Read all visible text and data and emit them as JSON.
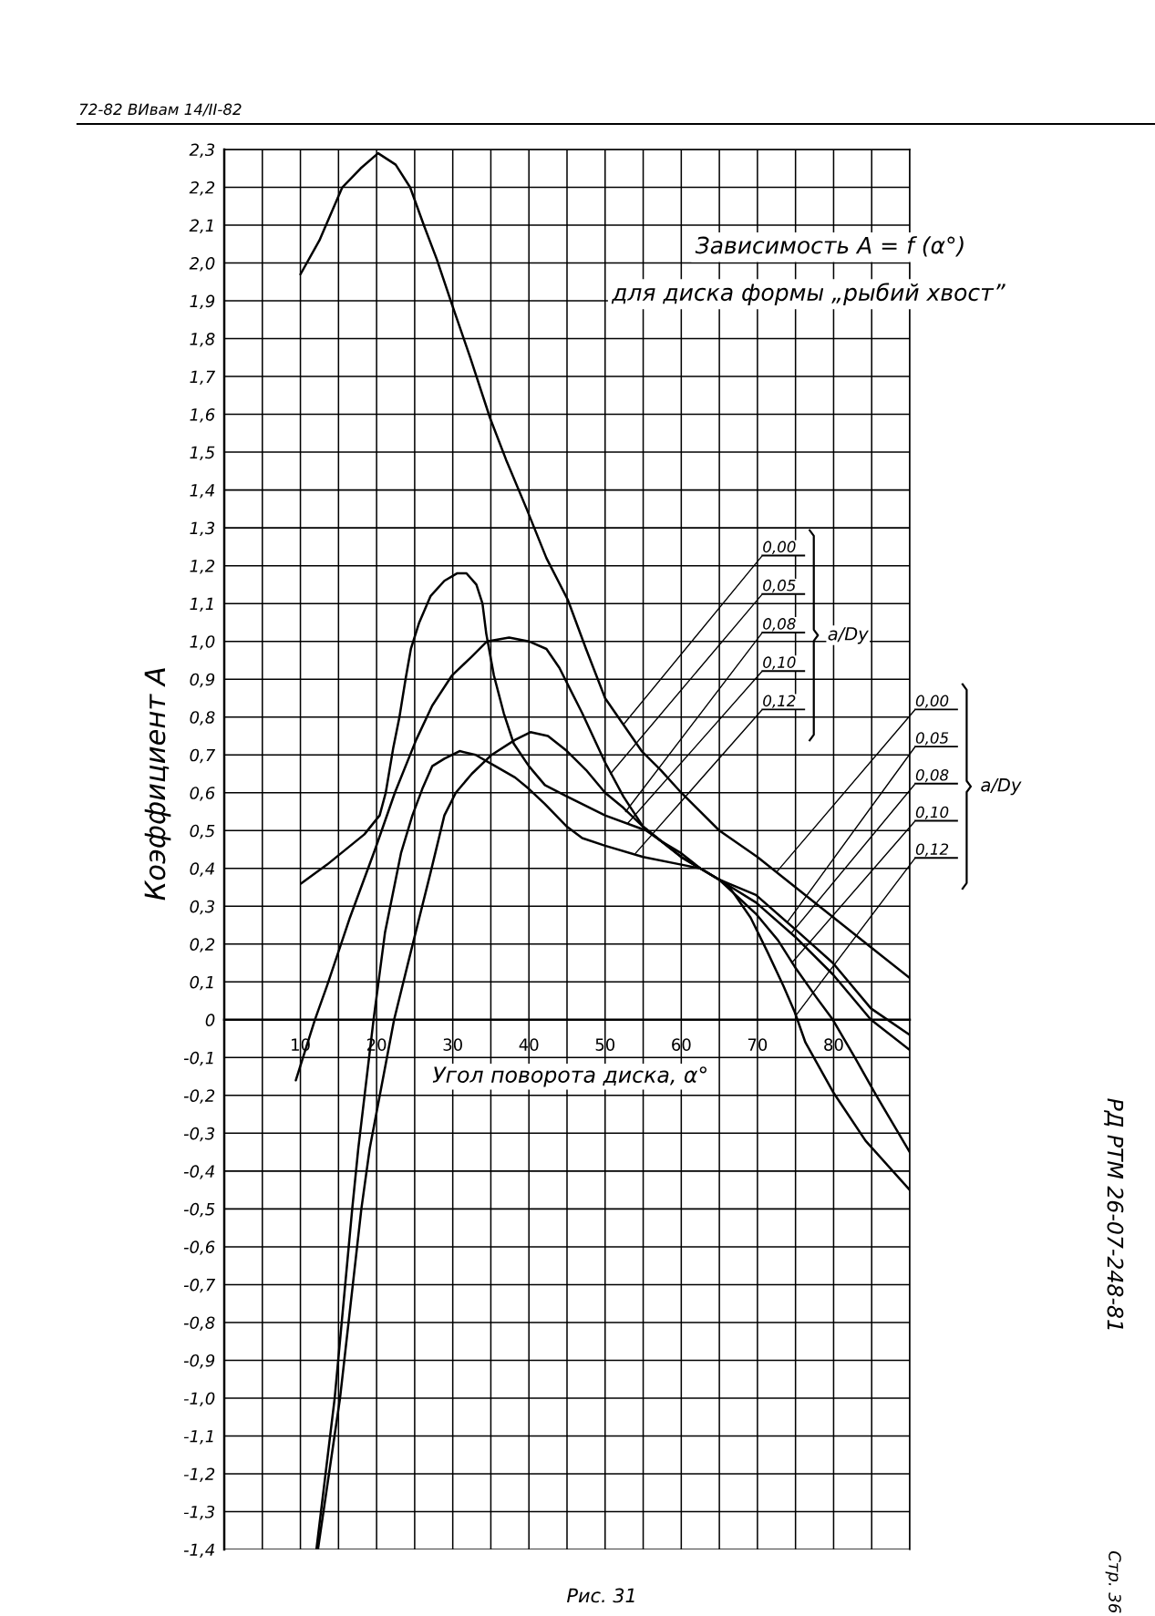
{
  "chart_data": {
    "type": "line",
    "title": "Зависимость A = f (α°)",
    "subtitle": "для диска формы „рыбий хвост”",
    "xlabel": "Угол поворота диска, α°",
    "ylabel": "Коэффициент A",
    "xlim": [
      0,
      90
    ],
    "ylim": [
      -1.4,
      2.3
    ],
    "xticks": [
      {
        "value": 0,
        "label": null
      },
      {
        "value": 5,
        "label": null
      },
      10,
      {
        "value": 15,
        "label": null
      },
      20,
      {
        "value": 25,
        "label": null
      },
      30,
      {
        "value": 35,
        "label": null
      },
      40,
      {
        "value": 45,
        "label": null
      },
      50,
      {
        "value": 55,
        "label": null
      },
      60,
      {
        "value": 65,
        "label": null
      },
      70,
      {
        "value": 75,
        "label": null
      },
      80,
      {
        "value": 85,
        "label": null
      },
      {
        "value": 90,
        "label": null
      }
    ],
    "yticks": [
      {
        "value": -1.4,
        "label": "-1,4"
      },
      {
        "value": -1.3,
        "label": "-1,3"
      },
      {
        "value": -1.2,
        "label": "-1,2"
      },
      {
        "value": -1.1,
        "label": "-1,1"
      },
      {
        "value": -1.0,
        "label": "-1,0"
      },
      {
        "value": -0.9,
        "label": "-0,9"
      },
      {
        "value": -0.8,
        "label": "-0,8"
      },
      {
        "value": -0.7,
        "label": "-0,7"
      },
      {
        "value": -0.6,
        "label": "-0,6"
      },
      {
        "value": -0.5,
        "label": "-0,5"
      },
      {
        "value": -0.4,
        "label": "-0,4"
      },
      {
        "value": -0.3,
        "label": "-0,3"
      },
      {
        "value": -0.2,
        "label": "-0,2"
      },
      {
        "value": -0.1,
        "label": "-0,1"
      },
      0,
      {
        "value": 0.1,
        "label": "0,1"
      },
      {
        "value": 0.2,
        "label": "0,2"
      },
      {
        "value": 0.3,
        "label": "0,3"
      },
      {
        "value": 0.4,
        "label": "0,4"
      },
      {
        "value": 0.5,
        "label": "0,5"
      },
      {
        "value": 0.6,
        "label": "0,6"
      },
      {
        "value": 0.7,
        "label": "0,7"
      },
      {
        "value": 0.8,
        "label": "0,8"
      },
      {
        "value": 0.9,
        "label": "0,9"
      },
      {
        "value": 1.0,
        "label": "1,0"
      },
      {
        "value": 1.1,
        "label": "1,1"
      },
      {
        "value": 1.2,
        "label": "1,2"
      },
      {
        "value": 1.3,
        "label": "1,3"
      },
      {
        "value": 1.4,
        "label": "1,4"
      },
      {
        "value": 1.5,
        "label": "1,5"
      },
      {
        "value": 1.6,
        "label": "1,6"
      },
      {
        "value": 1.7,
        "label": "1,7"
      },
      {
        "value": 1.8,
        "label": "1,8"
      },
      {
        "value": 1.9,
        "label": "1,9"
      },
      {
        "value": 2.0,
        "label": "2,0"
      },
      {
        "value": 2.1,
        "label": "2,1"
      },
      {
        "value": 2.2,
        "label": "2,2"
      },
      {
        "value": 2.3,
        "label": "2,3"
      }
    ],
    "grid": true,
    "line_style": "solid",
    "series": [
      {
        "color": "#000000",
        "x": [
          10.0,
          12.5,
          15.5,
          17.9,
          20.2,
          22.5,
          24.4,
          26.2,
          27.9,
          29.9,
          32.3,
          34.9,
          37.0,
          39.7,
          42.3,
          45.1,
          47.5,
          50.0,
          52.4,
          54.8,
          57.3,
          60.0,
          65.0,
          70.0,
          75.0,
          80.0,
          85.0,
          90.0
        ],
        "values": [
          1.97,
          2.06,
          2.2,
          2.25,
          2.29,
          2.26,
          2.2,
          2.1,
          2.01,
          1.89,
          1.75,
          1.59,
          1.48,
          1.35,
          1.22,
          1.11,
          0.98,
          0.85,
          0.78,
          0.71,
          0.66,
          0.6,
          0.5,
          0.43,
          0.35,
          0.27,
          0.19,
          0.11
        ]
      },
      {
        "color": "#000000",
        "x": [
          9.4,
          11.9,
          13.5,
          16.5,
          19.8,
          22.4,
          25.2,
          27.3,
          29.9,
          32.5,
          34.5,
          37.4,
          40.0,
          42.3,
          44.0,
          47.0,
          50.0,
          52.4,
          55.0,
          57.5,
          60.0,
          62.5,
          65.0,
          69.8,
          74.9,
          79.9,
          84.9,
          90.0
        ],
        "values": [
          -0.16,
          0.0,
          0.09,
          0.27,
          0.45,
          0.6,
          0.74,
          0.83,
          0.91,
          0.96,
          1.0,
          1.01,
          1.0,
          0.98,
          0.93,
          0.81,
          0.68,
          0.59,
          0.51,
          0.47,
          0.43,
          0.4,
          0.37,
          0.33,
          0.24,
          0.15,
          0.03,
          -0.04
        ]
      },
      {
        "color": "#000000",
        "x": [
          12.3,
          15.2,
          18.0,
          19.1,
          22.3,
          24.5,
          27.1,
          28.9,
          30.4,
          32.5,
          35.1,
          38.2,
          40.2,
          42.5,
          45.0,
          47.5,
          50.0,
          52.4,
          55.0,
          57.5,
          60.0,
          62.5,
          65.0,
          69.8,
          74.9,
          79.9,
          84.9,
          90.0
        ],
        "values": [
          -1.4,
          -1.0,
          -0.5,
          -0.34,
          0.0,
          0.18,
          0.39,
          0.54,
          0.6,
          0.65,
          0.7,
          0.74,
          0.76,
          0.75,
          0.71,
          0.66,
          0.6,
          0.56,
          0.51,
          0.47,
          0.43,
          0.4,
          0.37,
          0.31,
          0.22,
          0.12,
          0.0,
          -0.08
        ]
      },
      {
        "color": "#000000",
        "x": [
          10.1,
          13.5,
          18.4,
          20.4,
          21.2,
          22.2,
          23.0,
          23.8,
          24.5,
          25.6,
          27.1,
          28.9,
          30.6,
          31.8,
          33.1,
          33.9,
          34.4,
          35.4,
          36.7,
          38.0,
          40.0,
          42.1,
          45.0,
          50.0,
          55.4,
          57.5,
          60.0,
          62.5,
          65.0,
          69.8,
          72.7,
          74.9,
          77.7,
          79.9,
          82.8,
          85.6,
          90.0
        ],
        "values": [
          0.36,
          0.41,
          0.49,
          0.54,
          0.6,
          0.72,
          0.8,
          0.9,
          0.98,
          1.05,
          1.12,
          1.16,
          1.18,
          1.18,
          1.15,
          1.1,
          1.02,
          0.91,
          0.81,
          0.73,
          0.67,
          0.62,
          0.59,
          0.54,
          0.5,
          0.47,
          0.44,
          0.4,
          0.37,
          0.28,
          0.21,
          0.14,
          0.06,
          0.0,
          -0.1,
          -0.2,
          -0.35
        ]
      },
      {
        "color": "#000000",
        "x": [
          12.1,
          14.5,
          16.8,
          17.6,
          19.6,
          21.1,
          23.2,
          24.7,
          26.0,
          27.3,
          28.9,
          30.9,
          33.0,
          35.6,
          38.2,
          40.0,
          42.1,
          45.0,
          47.0,
          50.0,
          55.0,
          60.0,
          62.5,
          65.0,
          66.0,
          69.1,
          71.3,
          73.4,
          74.9,
          76.3,
          79.9,
          84.2,
          90.0
        ],
        "values": [
          -1.4,
          -1.0,
          -0.5,
          -0.34,
          0.0,
          0.23,
          0.44,
          0.54,
          0.61,
          0.67,
          0.69,
          0.71,
          0.7,
          0.67,
          0.64,
          0.61,
          0.57,
          0.51,
          0.48,
          0.46,
          0.43,
          0.41,
          0.4,
          0.37,
          0.36,
          0.27,
          0.18,
          0.09,
          0.02,
          -0.06,
          -0.19,
          -0.32,
          -0.45
        ]
      }
    ],
    "annotations": [
      "72-82 ВИвам 14/II-82",
      {
        "text": "0,00",
        "x": 52.4,
        "y": 0.78
      },
      {
        "text": "0,05",
        "x": 50.7,
        "y": 0.65
      },
      {
        "text": "0,08",
        "x": 52.7,
        "y": 0.55
      },
      {
        "text": "0,10",
        "x": 53.0,
        "y": 0.52
      },
      {
        "text": "0,12",
        "x": 54.0,
        "y": 0.44
      },
      "a/Dу",
      {
        "text": "0,00",
        "x": 72.5,
        "y": 0.39
      },
      {
        "text": "0,05",
        "x": 74.0,
        "y": 0.26
      },
      {
        "text": "0,08",
        "x": 74.5,
        "y": 0.23
      },
      {
        "text": "0,10",
        "x": 74.5,
        "y": 0.15
      },
      {
        "text": "0,12",
        "x": 75.0,
        "y": 0.01
      },
      "a/Dу",
      "Рис. 31",
      "РД РТМ 26-07-248-81",
      "Стр. 36"
    ]
  }
}
